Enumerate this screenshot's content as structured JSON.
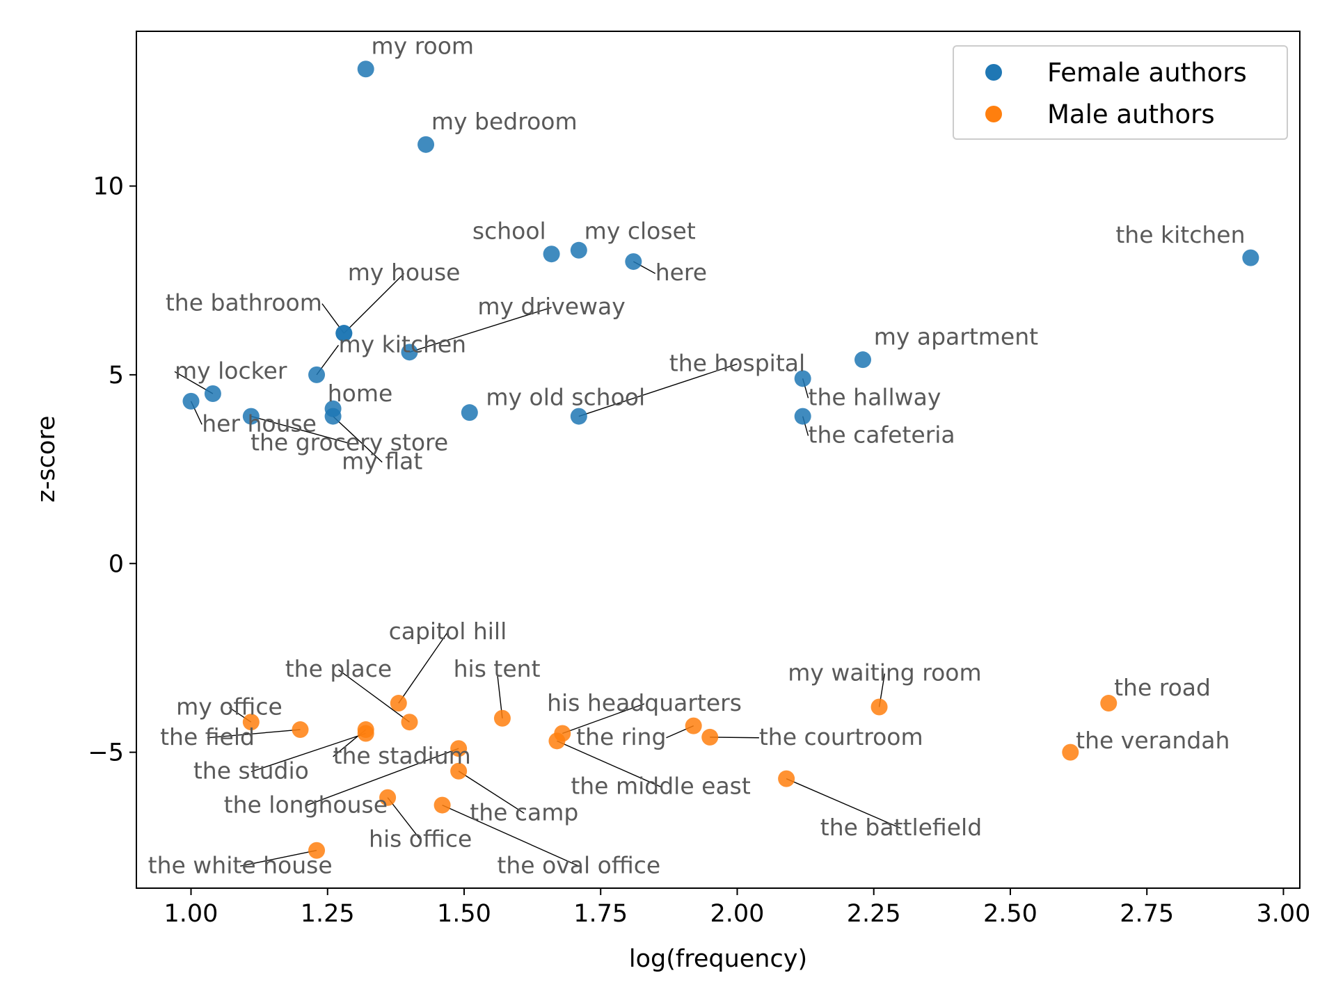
{
  "colors": {
    "female": "#1f77b4",
    "male": "#ff7f0e",
    "label": "#595959"
  },
  "chart_data": {
    "type": "scatter",
    "title": "",
    "xlabel": "log(frequency)",
    "ylabel": "z-score",
    "xlim": [
      0.9,
      3.03
    ],
    "ylim": [
      -8.6,
      14.1
    ],
    "xticks": [
      1.0,
      1.25,
      1.5,
      1.75,
      2.0,
      2.25,
      2.5,
      2.75,
      3.0
    ],
    "xtick_labels": [
      "1.00",
      "1.25",
      "1.50",
      "1.75",
      "2.00",
      "2.25",
      "2.50",
      "2.75",
      "3.00"
    ],
    "yticks": [
      -5,
      0,
      5,
      10
    ],
    "ytick_labels": [
      "−5",
      "0",
      "5",
      "10"
    ],
    "grid": false,
    "legend_position": "top-right",
    "series": [
      {
        "name": "Female authors",
        "points": [
          {
            "label": "my room",
            "x": 1.32,
            "y": 13.1,
            "lx": 1.33,
            "ly": 13.5,
            "anchor": "start"
          },
          {
            "label": "my bedroom",
            "x": 1.43,
            "y": 11.1,
            "lx": 1.44,
            "ly": 11.5,
            "anchor": "start"
          },
          {
            "label": "school",
            "x": 1.66,
            "y": 8.2,
            "lx": 1.65,
            "ly": 8.6,
            "anchor": "end"
          },
          {
            "label": "my closet",
            "x": 1.71,
            "y": 8.3,
            "lx": 1.72,
            "ly": 8.6,
            "anchor": "start"
          },
          {
            "label": "here",
            "x": 1.81,
            "y": 8.0,
            "lx": 1.85,
            "ly": 7.5,
            "anchor": "start"
          },
          {
            "label": "the kitchen",
            "x": 2.94,
            "y": 8.1,
            "lx": 2.93,
            "ly": 8.5,
            "anchor": "end"
          },
          {
            "label": "my house",
            "x": 1.28,
            "y": 6.1,
            "lx": 1.39,
            "ly": 7.5,
            "anchor": "middle"
          },
          {
            "label": "the bathroom",
            "x": 1.28,
            "y": 6.1,
            "lx": 1.24,
            "ly": 6.7,
            "anchor": "end"
          },
          {
            "label": "my driveway",
            "x": 1.4,
            "y": 5.6,
            "lx": 1.66,
            "ly": 6.6,
            "anchor": "middle"
          },
          {
            "label": "my kitchen",
            "x": 1.23,
            "y": 5.0,
            "lx": 1.27,
            "ly": 5.6,
            "anchor": "start"
          },
          {
            "label": "my locker",
            "x": 1.04,
            "y": 4.5,
            "lx": 0.97,
            "ly": 4.9,
            "anchor": "start"
          },
          {
            "label": "her house",
            "x": 1.0,
            "y": 4.3,
            "lx": 1.02,
            "ly": 3.5,
            "anchor": "start"
          },
          {
            "label": "home",
            "x": 1.26,
            "y": 4.1,
            "lx": 1.25,
            "ly": 4.3,
            "anchor": "start"
          },
          {
            "label": "the grocery store",
            "x": 1.11,
            "y": 3.9,
            "lx": 1.29,
            "ly": 3.0,
            "anchor": "middle"
          },
          {
            "label": "my flat",
            "x": 1.26,
            "y": 3.9,
            "lx": 1.35,
            "ly": 2.5,
            "anchor": "middle"
          },
          {
            "label": "my old school",
            "x": 1.51,
            "y": 4.0,
            "lx": 1.54,
            "ly": 4.2,
            "anchor": "start"
          },
          {
            "label": "the hospital",
            "x": 1.71,
            "y": 3.9,
            "lx": 2.0,
            "ly": 5.1,
            "anchor": "middle"
          },
          {
            "label": "the hallway",
            "x": 2.12,
            "y": 4.9,
            "lx": 2.13,
            "ly": 4.2,
            "anchor": "start"
          },
          {
            "label": "the cafeteria",
            "x": 2.12,
            "y": 3.9,
            "lx": 2.13,
            "ly": 3.2,
            "anchor": "start"
          },
          {
            "label": "my apartment",
            "x": 2.23,
            "y": 5.4,
            "lx": 2.25,
            "ly": 5.8,
            "anchor": "start"
          }
        ]
      },
      {
        "name": "Male authors",
        "points": [
          {
            "label": "capitol hill",
            "x": 1.38,
            "y": -3.7,
            "lx": 1.47,
            "ly": -2.0,
            "anchor": "middle"
          },
          {
            "label": "the place",
            "x": 1.4,
            "y": -4.2,
            "lx": 1.27,
            "ly": -3.0,
            "anchor": "middle"
          },
          {
            "label": "his tent",
            "x": 1.57,
            "y": -4.1,
            "lx": 1.56,
            "ly": -3.0,
            "anchor": "middle"
          },
          {
            "label": "my office",
            "x": 1.11,
            "y": -4.2,
            "lx": 1.07,
            "ly": -4.0,
            "anchor": "middle"
          },
          {
            "label": "the field",
            "x": 1.2,
            "y": -4.4,
            "lx": 1.03,
            "ly": -4.8,
            "anchor": "middle"
          },
          {
            "label": "the studio",
            "x": 1.32,
            "y": -4.5,
            "lx": 1.11,
            "ly": -5.7,
            "anchor": "middle"
          },
          {
            "label": "the stadium",
            "x": 1.32,
            "y": -4.4,
            "lx": 1.26,
            "ly": -5.3,
            "anchor": "start"
          },
          {
            "label": "his headquarters",
            "x": 1.68,
            "y": -4.5,
            "lx": 1.83,
            "ly": -3.9,
            "anchor": "middle"
          },
          {
            "label": "the ring",
            "x": 1.92,
            "y": -4.3,
            "lx": 1.87,
            "ly": -4.8,
            "anchor": "end"
          },
          {
            "label": "the courtroom",
            "x": 1.95,
            "y": -4.6,
            "lx": 2.04,
            "ly": -4.8,
            "anchor": "start"
          },
          {
            "label": "the middle east",
            "x": 1.67,
            "y": -4.7,
            "lx": 1.86,
            "ly": -6.1,
            "anchor": "middle"
          },
          {
            "label": "the longhouse",
            "x": 1.49,
            "y": -4.9,
            "lx": 1.21,
            "ly": -6.6,
            "anchor": "middle"
          },
          {
            "label": "the camp",
            "x": 1.49,
            "y": -5.5,
            "lx": 1.61,
            "ly": -6.8,
            "anchor": "middle"
          },
          {
            "label": "his office",
            "x": 1.36,
            "y": -6.2,
            "lx": 1.42,
            "ly": -7.5,
            "anchor": "middle"
          },
          {
            "label": "the oval office",
            "x": 1.46,
            "y": -6.4,
            "lx": 1.71,
            "ly": -8.2,
            "anchor": "middle"
          },
          {
            "label": "the white house",
            "x": 1.23,
            "y": -7.6,
            "lx": 1.09,
            "ly": -8.2,
            "anchor": "middle"
          },
          {
            "label": "my waiting room",
            "x": 2.26,
            "y": -3.8,
            "lx": 2.27,
            "ly": -3.1,
            "anchor": "middle"
          },
          {
            "label": "the battlefield",
            "x": 2.09,
            "y": -5.7,
            "lx": 2.3,
            "ly": -7.2,
            "anchor": "middle"
          },
          {
            "label": "the road",
            "x": 2.68,
            "y": -3.7,
            "lx": 2.69,
            "ly": -3.5,
            "anchor": "start"
          },
          {
            "label": "the verandah",
            "x": 2.61,
            "y": -5.0,
            "lx": 2.62,
            "ly": -4.9,
            "anchor": "start"
          }
        ]
      }
    ]
  }
}
